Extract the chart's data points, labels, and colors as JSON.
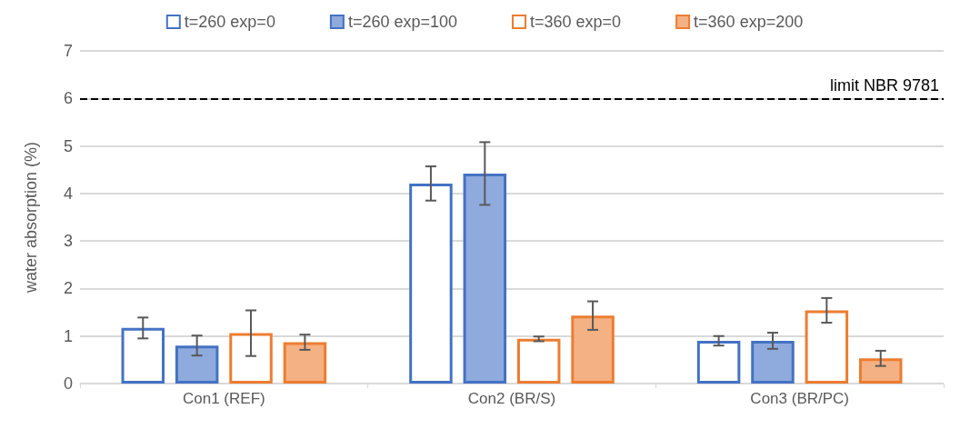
{
  "chart_data": {
    "type": "bar",
    "ylabel": "water absorption (%)",
    "categories": [
      "Con1 (REF)",
      "Con2 (BR/S)",
      "Con3 (BR/PC)"
    ],
    "series": [
      {
        "name": "t=260 exp=0",
        "color": "#4472c4",
        "colors": [
          "#ffffff",
          "#ffffff",
          "#ffffff"
        ],
        "values": [
          1.17,
          4.21,
          0.9
        ],
        "errors": [
          0.22,
          0.36,
          0.1
        ]
      },
      {
        "name": "t=260 exp=100",
        "color": "#4472c4",
        "colors": [
          "#8faadc",
          "#8faadc",
          "#8faadc"
        ],
        "values": [
          0.8,
          4.42,
          0.9
        ],
        "errors": [
          0.21,
          0.66,
          0.17
        ]
      },
      {
        "name": "t=360 exp=0",
        "color": "#ed7d31",
        "colors": [
          "#ffffff",
          "#ffffff",
          "#ffffff"
        ],
        "values": [
          1.06,
          0.94,
          1.54
        ],
        "errors": [
          0.48,
          0.05,
          0.26
        ]
      },
      {
        "name": "t=360 exp=200",
        "color": "#ed7d31",
        "colors": [
          "#f4b183",
          "#f4b183",
          "#f4b183"
        ],
        "values": [
          0.87,
          1.43,
          0.53
        ],
        "errors": [
          0.16,
          0.3,
          0.16
        ]
      }
    ],
    "ylim": [
      0,
      7
    ],
    "yticks": [
      0,
      1,
      2,
      3,
      4,
      5,
      6,
      7
    ],
    "grid": "y",
    "legend": "top",
    "ref_lines": [
      {
        "axis": "y",
        "value": 6,
        "label": "limit NBR 9781",
        "color": "#000000",
        "line_style": "dashed"
      }
    ]
  }
}
